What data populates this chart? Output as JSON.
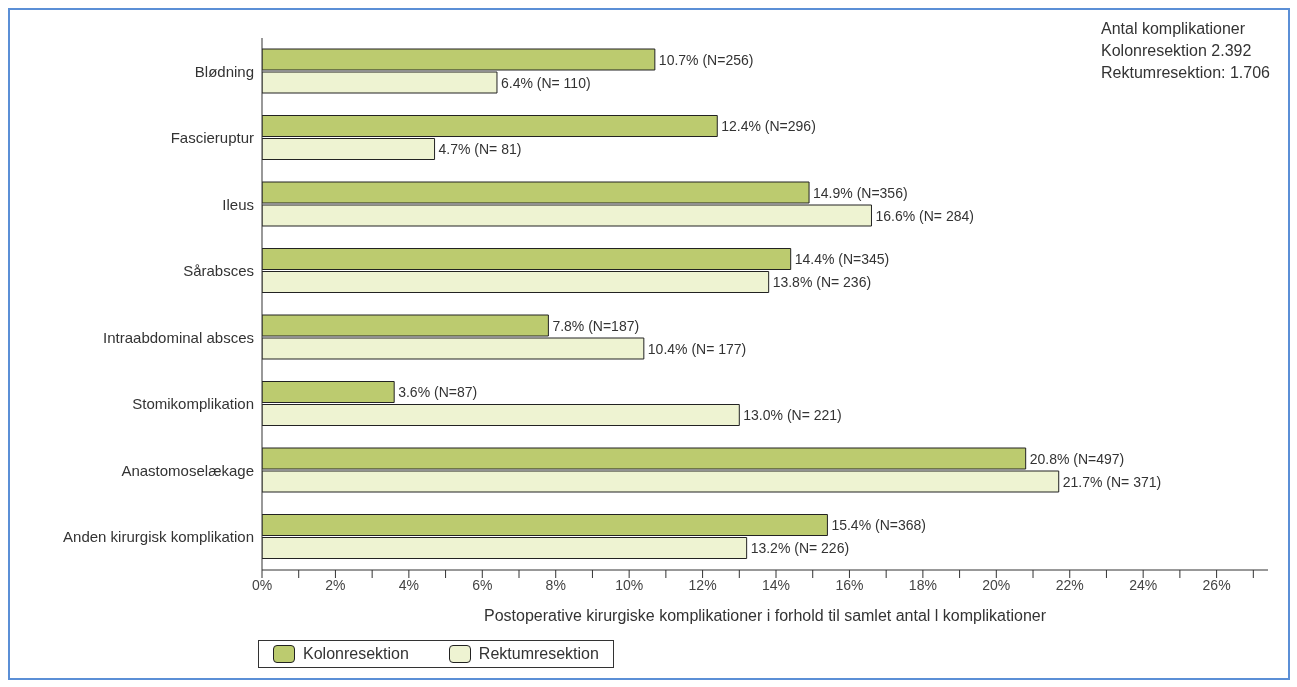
{
  "chart_data": {
    "type": "bar",
    "orientation": "horizontal",
    "categories": [
      "Blødning",
      "Fascieruptur",
      "Ileus",
      "Sårabsces",
      "Intraabdominal absces",
      "Stomikomplikation",
      "Anastomoselækage",
      "Anden kirurgisk komplikation"
    ],
    "series": [
      {
        "name": "Kolonresektion",
        "color": "#bccb6f",
        "values": [
          10.7,
          12.4,
          14.9,
          14.4,
          7.8,
          3.6,
          20.8,
          15.4
        ],
        "value_labels": [
          "10.7% (N=256)",
          "12.4% (N=296)",
          "14.9% (N=356)",
          "14.4% (N=345)",
          "7.8% (N=187)",
          "3.6% (N=87)",
          "20.8% (N=497)",
          "15.4% (N=368)"
        ]
      },
      {
        "name": "Rektumresektion",
        "color": "#eef3d2",
        "values": [
          6.4,
          4.7,
          16.6,
          13.8,
          10.4,
          13.0,
          21.7,
          13.2
        ],
        "value_labels": [
          "6.4% (N= 110)",
          "4.7% (N= 81)",
          "16.6% (N= 284)",
          "13.8% (N= 236)",
          "10.4% (N= 177)",
          "13.0% (N= 221)",
          "21.7% (N= 371)",
          "13.2% (N= 226)"
        ]
      }
    ],
    "xlim": [
      0,
      27.4
    ],
    "xticks": [
      {
        "value": 0,
        "label": "0%"
      },
      {
        "value": 1,
        "label": null
      },
      {
        "value": 2,
        "label": "2%"
      },
      {
        "value": 3,
        "label": null
      },
      {
        "value": 4,
        "label": "4%"
      },
      {
        "value": 5,
        "label": null
      },
      {
        "value": 6,
        "label": "6%"
      },
      {
        "value": 7,
        "label": null
      },
      {
        "value": 8,
        "label": "8%"
      },
      {
        "value": 9,
        "label": null
      },
      {
        "value": 10,
        "label": "10%"
      },
      {
        "value": 11,
        "label": null
      },
      {
        "value": 12,
        "label": "12%"
      },
      {
        "value": 13,
        "label": null
      },
      {
        "value": 14,
        "label": "14%"
      },
      {
        "value": 15,
        "label": null
      },
      {
        "value": 16,
        "label": "16%"
      },
      {
        "value": 17,
        "label": null
      },
      {
        "value": 18,
        "label": "18%"
      },
      {
        "value": 19,
        "label": null
      },
      {
        "value": 20,
        "label": "20%"
      },
      {
        "value": 21,
        "label": null
      },
      {
        "value": 22,
        "label": "22%"
      },
      {
        "value": 23,
        "label": null
      },
      {
        "value": 24,
        "label": "24%"
      },
      {
        "value": 25,
        "label": null
      },
      {
        "value": 26,
        "label": "26%"
      },
      {
        "value": 27,
        "label": null
      }
    ],
    "xlabel": "Postoperative kirurgiske komplikationer i forhold til samlet antal l komplikationer",
    "annotations": [
      "Antal komplikationer",
      "Kolonresektion 2.392",
      "Rektumresektion: 1.706"
    ],
    "legend": "bottom left",
    "grid": false
  }
}
